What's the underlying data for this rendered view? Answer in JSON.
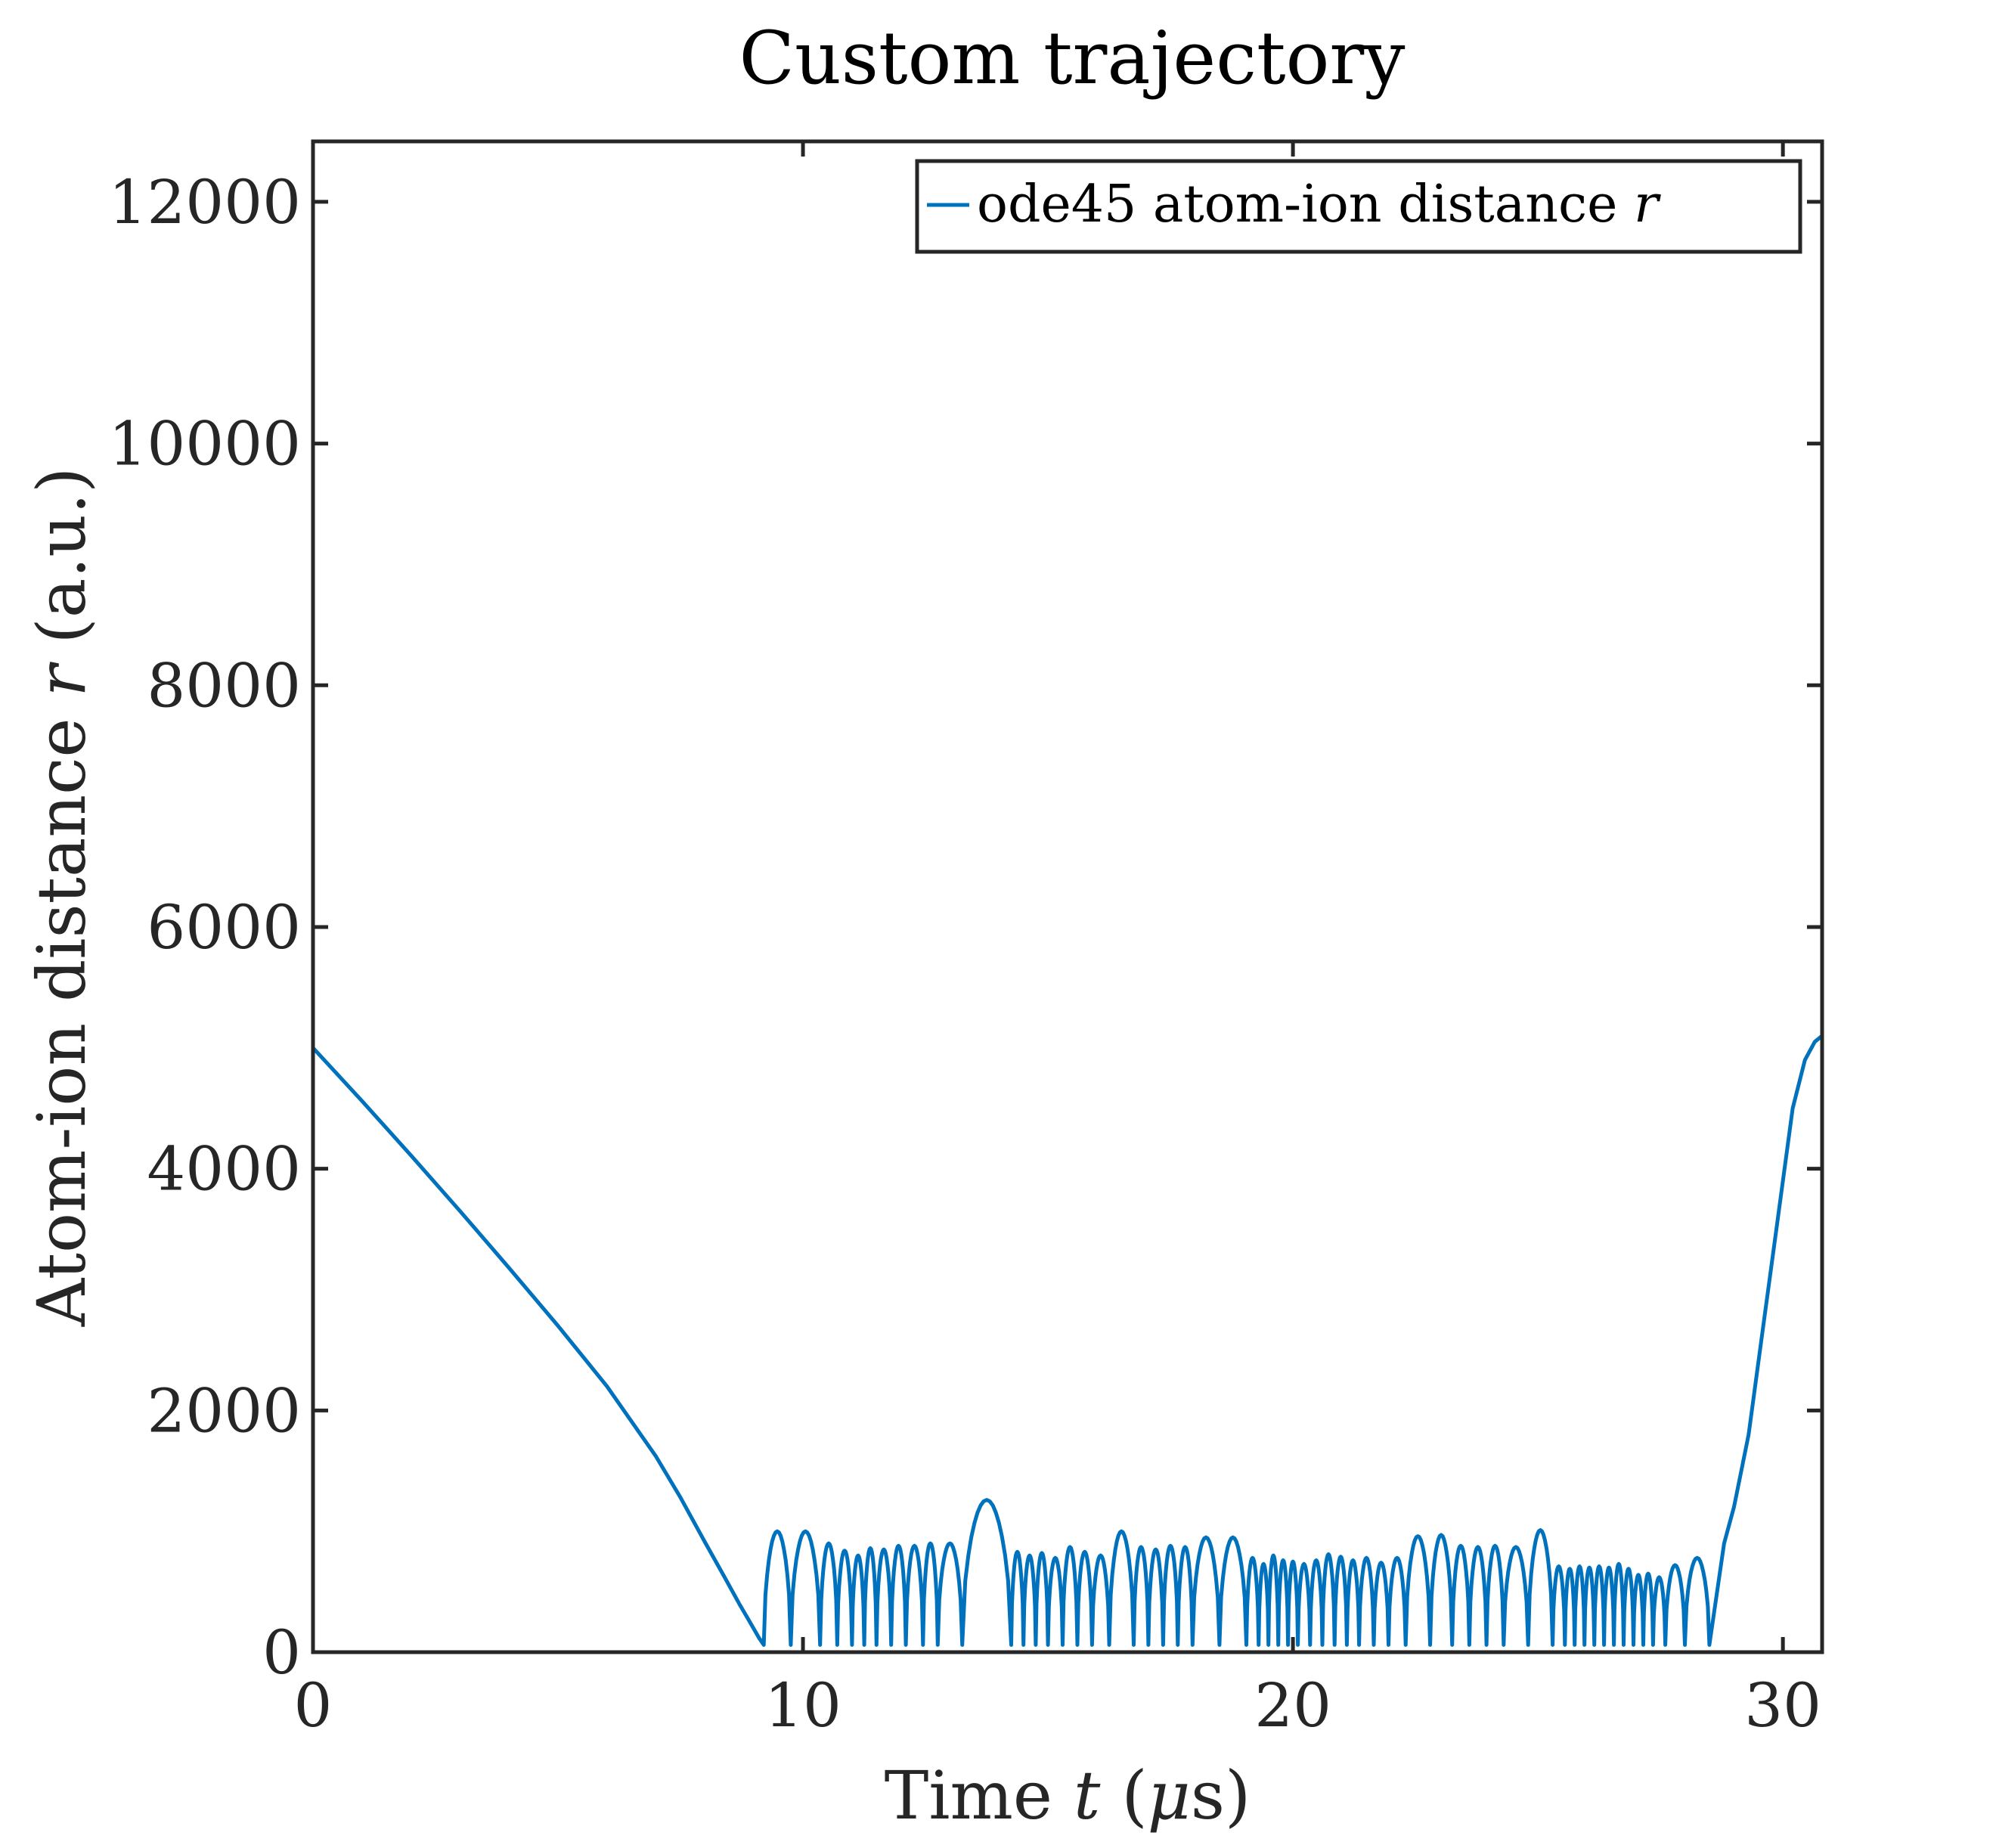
{
  "chart_data": {
    "type": "line",
    "title": "Custom trajectory",
    "xlabel": "Time t (μs)",
    "xlabel_parts": {
      "prefix": "Time ",
      "var": "t",
      "open": " (",
      "unit_var": "μ",
      "unit": "s)"
    },
    "ylabel": "Atom-ion distance r (a.u.)",
    "ylabel_parts": {
      "prefix": "Atom-ion distance ",
      "var": "r",
      "suffix": " (a.u.)"
    },
    "xlim": [
      0,
      30.8
    ],
    "ylim": [
      0,
      12500
    ],
    "xticks": [
      0,
      10,
      20,
      30
    ],
    "xtick_labels": [
      "0",
      "10",
      "20",
      "30"
    ],
    "yticks": [
      0,
      2000,
      4000,
      6000,
      8000,
      10000,
      12000
    ],
    "ytick_labels": [
      "0",
      "2000",
      "4000",
      "6000",
      "8000",
      "10000",
      "12000"
    ],
    "grid": false,
    "box": true,
    "legend_placement": "top-right",
    "series": [
      {
        "name": "ode45 atom-ion distance r",
        "name_parts": {
          "prefix": "ode45 atom-ion distance ",
          "var": "r"
        },
        "color": "#0072BD",
        "approach": {
          "x": [
            0,
            1,
            2,
            3,
            4,
            5,
            6,
            7,
            7.5,
            8,
            8.4,
            8.7,
            8.9,
            9.1,
            9.2
          ],
          "y": [
            5000,
            4560,
            4110,
            3650,
            3180,
            2700,
            2200,
            1620,
            1280,
            910,
            620,
            400,
            260,
            120,
            60
          ]
        },
        "oscillation_minima_x": [
          9.2,
          9.75,
          10.35,
          10.7,
          11.0,
          11.25,
          11.5,
          11.8,
          12.1,
          12.45,
          12.75,
          13.25,
          14.25,
          14.5,
          14.75,
          15.0,
          15.3,
          15.6,
          15.9,
          16.25,
          16.75,
          17.05,
          17.35,
          17.65,
          17.95,
          18.5,
          19.05,
          19.3,
          19.5,
          19.7,
          19.9,
          20.1,
          20.35,
          20.6,
          20.85,
          21.1,
          21.35,
          21.65,
          21.95,
          22.3,
          22.8,
          23.25,
          23.6,
          23.95,
          24.3,
          24.8,
          25.3,
          25.55,
          25.75,
          25.95,
          26.15,
          26.35,
          26.55,
          26.75,
          26.95,
          27.15,
          27.35,
          27.6,
          28.0,
          28.5
        ],
        "oscillation_peaks_y": [
          1000,
          1000,
          900,
          840,
          800,
          860,
          850,
          880,
          880,
          900,
          900,
          1260,
          830,
          800,
          820,
          780,
          870,
          830,
          800,
          1000,
          870,
          850,
          880,
          870,
          950,
          950,
          780,
          730,
          800,
          760,
          750,
          730,
          760,
          810,
          790,
          760,
          780,
          740,
          780,
          960,
          970,
          880,
          870,
          880,
          870,
          1010,
          710,
          690,
          710,
          700,
          710,
          700,
          730,
          690,
          640,
          650,
          620,
          720,
          780,
          800
        ],
        "departure": {
          "x": [
            28.5,
            28.8,
            29.0,
            29.3,
            29.6,
            29.9,
            30.2,
            30.45,
            30.65,
            30.8
          ],
          "y": [
            60,
            900,
            1200,
            1800,
            2700,
            3600,
            4500,
            4900,
            5050,
            5100
          ]
        }
      }
    ]
  }
}
